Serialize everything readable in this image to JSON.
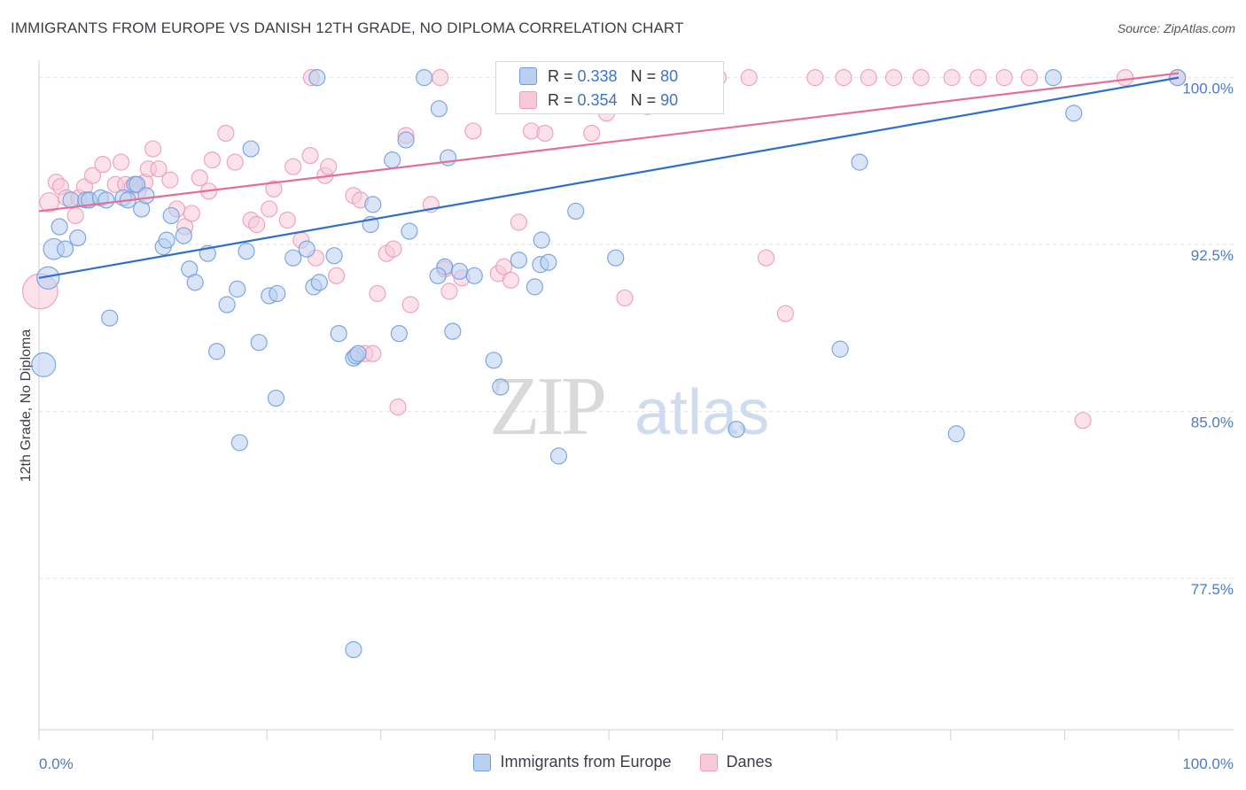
{
  "header": {
    "title": "IMMIGRANTS FROM EUROPE VS DANISH 12TH GRADE, NO DIPLOMA CORRELATION CHART",
    "source": "Source: ZipAtlas.com"
  },
  "watermark": {
    "zip": "ZIP",
    "atlas": "atlas"
  },
  "colors": {
    "blue": "#6f9ee0",
    "blue_fill": "#b9cff0",
    "blue_line": "#2f6fcc",
    "pink": "#ee9bb7",
    "pink_fill": "#f8cad9",
    "pink_line": "#e56f96",
    "tick_text": "#4a7bc8"
  },
  "stats": {
    "blue": {
      "r_label": "R = ",
      "r_value": "0.338",
      "n_label": "N = ",
      "n_value": "80"
    },
    "pink": {
      "r_label": "R = ",
      "r_value": "0.354",
      "n_label": "N = ",
      "n_value": "90"
    }
  },
  "chart_data": {
    "type": "scatter",
    "title": "IMMIGRANTS FROM EUROPE VS DANISH 12TH GRADE, NO DIPLOMA CORRELATION CHART",
    "xlabel": "",
    "ylabel": "12th Grade, No Diploma",
    "x_tick_labels": [
      "0.0%",
      "100.0%"
    ],
    "y_tick_labels": [
      "100.0%",
      "92.5%",
      "85.0%",
      "77.5%"
    ],
    "y_ticks": [
      100.0,
      92.5,
      85.0,
      77.5
    ],
    "xlim": [
      0,
      100
    ],
    "ylim": [
      70.7,
      101.1
    ],
    "grid": "horizontal dashed",
    "legend_position": "bottom-center",
    "series": [
      {
        "name": "Immigrants from Europe",
        "color": "blue",
        "trend": {
          "x": [
            0,
            100
          ],
          "y": [
            91.0,
            100.0
          ]
        },
        "points": [
          [
            0.4,
            87.1,
            1.5
          ],
          [
            0.8,
            91.0,
            1.4
          ],
          [
            1.3,
            92.3,
            1.3
          ],
          [
            1.8,
            93.3,
            1.0
          ],
          [
            2.3,
            92.3,
            1.0
          ],
          [
            3.4,
            92.8,
            1.0
          ],
          [
            2.8,
            94.5,
            1.0
          ],
          [
            4.1,
            94.5,
            1.0
          ],
          [
            4.4,
            94.5,
            1.0
          ],
          [
            5.4,
            94.6,
            1.0
          ],
          [
            5.9,
            94.5,
            1.0
          ],
          [
            6.2,
            89.2,
            1.0
          ],
          [
            8.4,
            95.2,
            1.0
          ],
          [
            8.6,
            95.2,
            1.0
          ],
          [
            7.4,
            94.6,
            1.0
          ],
          [
            7.8,
            94.5,
            1.0
          ],
          [
            9.0,
            94.1,
            1.0
          ],
          [
            9.4,
            94.7,
            1.0
          ],
          [
            10.9,
            92.4,
            1.0
          ],
          [
            11.2,
            92.7,
            1.0
          ],
          [
            11.6,
            93.8,
            1.0
          ],
          [
            12.7,
            92.9,
            1.0
          ],
          [
            13.2,
            91.4,
            1.0
          ],
          [
            13.7,
            90.8,
            1.0
          ],
          [
            14.8,
            92.1,
            1.0
          ],
          [
            15.6,
            87.7,
            1.0
          ],
          [
            16.5,
            89.8,
            1.0
          ],
          [
            17.4,
            90.5,
            1.0
          ],
          [
            17.6,
            83.6,
            1.0
          ],
          [
            18.2,
            92.2,
            1.0
          ],
          [
            19.3,
            88.1,
            1.0
          ],
          [
            20.2,
            90.2,
            1.0
          ],
          [
            20.9,
            90.3,
            1.0
          ],
          [
            18.6,
            96.8,
            1.0
          ],
          [
            20.8,
            85.6,
            1.0
          ],
          [
            22.3,
            91.9,
            1.0
          ],
          [
            23.5,
            92.3,
            1.0
          ],
          [
            24.1,
            90.6,
            1.0
          ],
          [
            24.6,
            90.8,
            1.0
          ],
          [
            25.9,
            92.0,
            1.0
          ],
          [
            26.3,
            88.5,
            1.0
          ],
          [
            27.6,
            87.4,
            1.0
          ],
          [
            27.8,
            87.5,
            1.0
          ],
          [
            28.0,
            87.6,
            1.0
          ],
          [
            27.6,
            74.3,
            1.0
          ],
          [
            29.3,
            94.3,
            1.0
          ],
          [
            29.1,
            93.4,
            1.0
          ],
          [
            31.0,
            96.3,
            1.0
          ],
          [
            31.6,
            88.5,
            1.0
          ],
          [
            32.2,
            97.2,
            1.0
          ],
          [
            32.5,
            93.1,
            1.0
          ],
          [
            35.1,
            98.6,
            1.0
          ],
          [
            35.6,
            91.5,
            1.0
          ],
          [
            35.9,
            96.4,
            1.0
          ],
          [
            36.3,
            88.6,
            1.0
          ],
          [
            35.0,
            91.1,
            1.0
          ],
          [
            36.9,
            91.3,
            1.0
          ],
          [
            38.2,
            91.1,
            1.0
          ],
          [
            39.9,
            87.3,
            1.0
          ],
          [
            40.5,
            86.1,
            1.0
          ],
          [
            42.1,
            91.8,
            1.0
          ],
          [
            43.5,
            90.6,
            1.0
          ],
          [
            44.1,
            92.7,
            1.0
          ],
          [
            44.0,
            91.6,
            1.0
          ],
          [
            44.7,
            91.7,
            1.0
          ],
          [
            45.6,
            83.0,
            1.0
          ],
          [
            47.1,
            94.0,
            1.0
          ],
          [
            50.6,
            91.9,
            1.0
          ],
          [
            56.7,
            100.0,
            1.0
          ],
          [
            61.2,
            84.2,
            1.0
          ],
          [
            70.3,
            87.8,
            1.0
          ],
          [
            72.0,
            96.2,
            1.0
          ],
          [
            80.5,
            84.0,
            1.0
          ],
          [
            90.8,
            98.4,
            1.0
          ],
          [
            89.0,
            100.0,
            1.0
          ],
          [
            99.9,
            100.0,
            1.0
          ],
          [
            24.4,
            100.0,
            1.0
          ],
          [
            33.8,
            100.0,
            1.0
          ],
          [
            41.2,
            100.0,
            1.0
          ],
          [
            46.6,
            100.0,
            1.0
          ]
        ]
      },
      {
        "name": "Danes",
        "color": "pink",
        "trend": {
          "x": [
            0,
            100
          ],
          "y": [
            94.0,
            100.2
          ]
        },
        "points": [
          [
            0.1,
            90.4,
            2.2
          ],
          [
            0.9,
            94.4,
            1.2
          ],
          [
            1.5,
            95.3,
            1.0
          ],
          [
            1.9,
            95.1,
            1.0
          ],
          [
            2.4,
            94.6,
            1.0
          ],
          [
            3.2,
            93.8,
            1.0
          ],
          [
            3.5,
            94.6,
            1.0
          ],
          [
            4.0,
            95.1,
            1.0
          ],
          [
            4.4,
            94.5,
            1.0
          ],
          [
            4.7,
            95.6,
            1.0
          ],
          [
            5.6,
            96.1,
            1.0
          ],
          [
            6.7,
            95.2,
            1.0
          ],
          [
            7.2,
            96.2,
            1.0
          ],
          [
            7.6,
            95.2,
            1.0
          ],
          [
            8.2,
            95.1,
            1.0
          ],
          [
            8.7,
            94.9,
            1.0
          ],
          [
            9.3,
            95.3,
            1.0
          ],
          [
            9.6,
            95.9,
            1.0
          ],
          [
            10.0,
            96.8,
            1.0
          ],
          [
            10.5,
            95.9,
            1.0
          ],
          [
            11.5,
            95.4,
            1.0
          ],
          [
            12.1,
            94.1,
            1.0
          ],
          [
            12.8,
            93.3,
            1.0
          ],
          [
            13.4,
            93.9,
            1.0
          ],
          [
            14.1,
            95.5,
            1.0
          ],
          [
            14.9,
            94.9,
            1.0
          ],
          [
            15.2,
            96.3,
            1.0
          ],
          [
            16.4,
            97.5,
            1.0
          ],
          [
            17.2,
            96.2,
            1.0
          ],
          [
            18.6,
            93.6,
            1.0
          ],
          [
            19.1,
            93.4,
            1.0
          ],
          [
            20.2,
            94.1,
            1.0
          ],
          [
            20.6,
            95.0,
            1.0
          ],
          [
            21.8,
            93.6,
            1.0
          ],
          [
            22.3,
            96.0,
            1.0
          ],
          [
            23.0,
            92.7,
            1.0
          ],
          [
            23.8,
            96.5,
            1.0
          ],
          [
            24.3,
            91.9,
            1.0
          ],
          [
            25.1,
            95.6,
            1.0
          ],
          [
            25.4,
            96.0,
            1.0
          ],
          [
            26.1,
            91.1,
            1.0
          ],
          [
            27.6,
            94.7,
            1.0
          ],
          [
            28.2,
            94.5,
            1.0
          ],
          [
            28.6,
            87.6,
            1.0
          ],
          [
            29.3,
            87.6,
            1.0
          ],
          [
            29.7,
            90.3,
            1.0
          ],
          [
            30.5,
            92.1,
            1.0
          ],
          [
            31.1,
            92.3,
            1.0
          ],
          [
            31.5,
            85.2,
            1.0
          ],
          [
            32.2,
            97.4,
            1.0
          ],
          [
            32.6,
            89.8,
            1.0
          ],
          [
            34.4,
            94.3,
            1.0
          ],
          [
            35.6,
            91.4,
            1.0
          ],
          [
            36.0,
            90.4,
            1.0
          ],
          [
            37.1,
            91.0,
            1.0
          ],
          [
            38.1,
            97.6,
            1.0
          ],
          [
            40.3,
            91.2,
            1.0
          ],
          [
            40.8,
            91.5,
            1.0
          ],
          [
            41.4,
            90.9,
            1.0
          ],
          [
            42.1,
            93.5,
            1.0
          ],
          [
            43.2,
            97.6,
            1.0
          ],
          [
            44.4,
            97.5,
            1.0
          ],
          [
            46.1,
            100.0,
            1.0
          ],
          [
            47.2,
            100.0,
            1.0
          ],
          [
            48.5,
            97.5,
            1.0
          ],
          [
            49.8,
            98.4,
            1.0
          ],
          [
            51.4,
            90.1,
            1.0
          ],
          [
            52.1,
            100.0,
            1.0
          ],
          [
            53.4,
            98.7,
            1.0
          ],
          [
            55.2,
            100.0,
            1.0
          ],
          [
            57.3,
            100.0,
            1.0
          ],
          [
            59.6,
            100.0,
            1.0
          ],
          [
            62.3,
            100.0,
            1.0
          ],
          [
            63.8,
            91.9,
            1.0
          ],
          [
            65.5,
            89.4,
            1.0
          ],
          [
            68.1,
            100.0,
            1.0
          ],
          [
            70.6,
            100.0,
            1.0
          ],
          [
            72.8,
            100.0,
            1.0
          ],
          [
            75.0,
            100.0,
            1.0
          ],
          [
            77.4,
            100.0,
            1.0
          ],
          [
            80.1,
            100.0,
            1.0
          ],
          [
            82.4,
            100.0,
            1.0
          ],
          [
            84.7,
            100.0,
            1.0
          ],
          [
            86.9,
            100.0,
            1.0
          ],
          [
            91.6,
            84.6,
            1.0
          ],
          [
            95.3,
            100.0,
            1.0
          ],
          [
            99.9,
            100.0,
            1.0
          ],
          [
            23.9,
            100.0,
            1.0
          ],
          [
            35.2,
            100.0,
            1.0
          ],
          [
            45.0,
            100.0,
            1.0
          ]
        ]
      }
    ]
  },
  "legend": {
    "items": [
      {
        "label": "Immigrants from Europe"
      },
      {
        "label": "Danes"
      }
    ]
  }
}
